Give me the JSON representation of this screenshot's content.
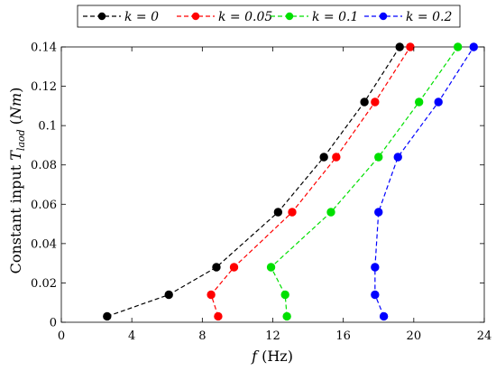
{
  "chart_data": {
    "type": "line",
    "xlabel": "f (Hz)",
    "ylabel": "Constant input T_laod (Nm)",
    "xlim": [
      0,
      24
    ],
    "ylim": [
      0,
      0.14
    ],
    "xticks": [
      0,
      4,
      8,
      12,
      16,
      20,
      24
    ],
    "yticks": [
      0,
      0.02,
      0.04,
      0.06,
      0.08,
      0.1,
      0.12,
      0.14
    ],
    "grid": false,
    "legend_position": "top",
    "line_style": "dashed",
    "marker": "circle",
    "series": [
      {
        "name": "k = 0",
        "color": "#000000",
        "points": [
          [
            2.6,
            0.003
          ],
          [
            6.1,
            0.014
          ],
          [
            8.8,
            0.028
          ],
          [
            12.3,
            0.056
          ],
          [
            14.9,
            0.084
          ],
          [
            17.2,
            0.112
          ],
          [
            19.2,
            0.14
          ]
        ]
      },
      {
        "name": "k = 0.05",
        "color": "#ff0000",
        "points": [
          [
            8.9,
            0.003
          ],
          [
            8.5,
            0.014
          ],
          [
            9.8,
            0.028
          ],
          [
            13.1,
            0.056
          ],
          [
            15.6,
            0.084
          ],
          [
            17.8,
            0.112
          ],
          [
            19.8,
            0.14
          ]
        ]
      },
      {
        "name": "k = 0.1",
        "color": "#00e000",
        "points": [
          [
            12.8,
            0.003
          ],
          [
            12.7,
            0.014
          ],
          [
            11.9,
            0.028
          ],
          [
            15.3,
            0.056
          ],
          [
            18.0,
            0.084
          ],
          [
            20.3,
            0.112
          ],
          [
            22.5,
            0.14
          ]
        ]
      },
      {
        "name": "k = 0.2",
        "color": "#0000ff",
        "points": [
          [
            18.3,
            0.003
          ],
          [
            17.8,
            0.014
          ],
          [
            17.8,
            0.028
          ],
          [
            18.0,
            0.056
          ],
          [
            19.1,
            0.084
          ],
          [
            21.4,
            0.112
          ],
          [
            23.4,
            0.14
          ]
        ]
      }
    ]
  }
}
